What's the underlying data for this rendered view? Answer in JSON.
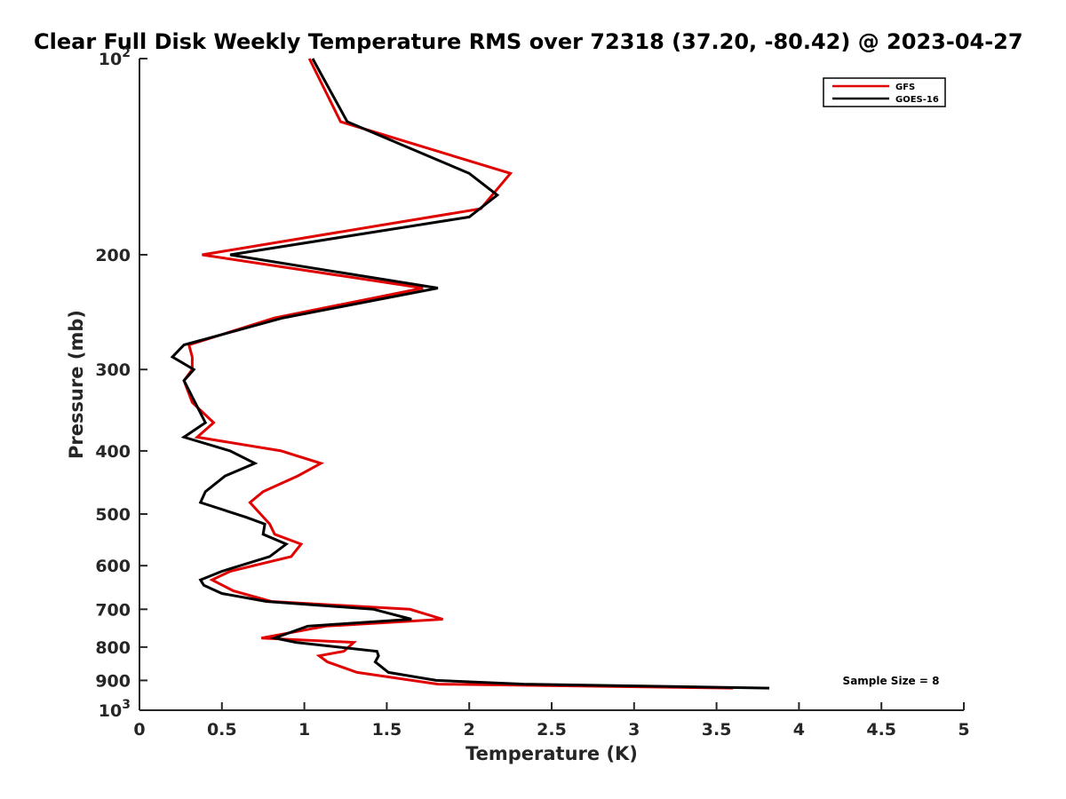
{
  "chart_data": {
    "type": "line",
    "title": "Clear Full Disk Weekly Temperature RMS over 72318 (37.20, -80.42) @ 2023-04-27",
    "xlabel": "Temperature (K)",
    "ylabel": "Pressure (mb)",
    "xlim": [
      0,
      5
    ],
    "ylim": [
      100,
      1000
    ],
    "yscale": "log",
    "yreversed": true,
    "x_ticks": [
      "0",
      "0.5",
      "1",
      "1.5",
      "2",
      "2.5",
      "3",
      "3.5",
      "4",
      "4.5",
      "5"
    ],
    "y_ticks": [
      {
        "value": 100,
        "base": "10",
        "exp": "2"
      },
      {
        "value": 200,
        "label": "200"
      },
      {
        "value": 300,
        "label": "300"
      },
      {
        "value": 400,
        "label": "400"
      },
      {
        "value": 500,
        "label": "500"
      },
      {
        "value": 600,
        "label": "600"
      },
      {
        "value": 700,
        "label": "700"
      },
      {
        "value": 800,
        "label": "800"
      },
      {
        "value": 900,
        "label": "900"
      },
      {
        "value": 1000,
        "base": "10",
        "exp": "3"
      }
    ],
    "grid": false,
    "legend_position": "top-right",
    "series": [
      {
        "name": "GFS",
        "color": "#e00000",
        "points": [
          [
            1.03,
            100
          ],
          [
            1.22,
            125
          ],
          [
            2.25,
            150
          ],
          [
            2.07,
            170
          ],
          [
            0.38,
            200
          ],
          [
            1.72,
            225
          ],
          [
            0.82,
            250
          ],
          [
            0.3,
            275
          ],
          [
            0.32,
            287
          ],
          [
            0.32,
            300
          ],
          [
            0.27,
            312
          ],
          [
            0.32,
            337
          ],
          [
            0.45,
            362
          ],
          [
            0.35,
            381
          ],
          [
            0.86,
            400
          ],
          [
            1.1,
            418
          ],
          [
            0.96,
            437
          ],
          [
            0.75,
            462
          ],
          [
            0.67,
            480
          ],
          [
            0.79,
            518
          ],
          [
            0.82,
            537
          ],
          [
            0.98,
            556
          ],
          [
            0.92,
            581
          ],
          [
            0.55,
            612
          ],
          [
            0.44,
            631
          ],
          [
            0.57,
            656
          ],
          [
            0.8,
            681
          ],
          [
            1.64,
            700
          ],
          [
            1.84,
            725
          ],
          [
            1.13,
            743
          ],
          [
            0.74,
            775
          ],
          [
            1.3,
            787
          ],
          [
            1.24,
            812
          ],
          [
            1.09,
            825
          ],
          [
            1.14,
            843
          ],
          [
            1.32,
            875
          ],
          [
            1.81,
            912
          ],
          [
            3.6,
            925
          ]
        ]
      },
      {
        "name": "GOES-16",
        "color": "#000000",
        "points": [
          [
            1.05,
            100
          ],
          [
            1.26,
            125
          ],
          [
            2.0,
            150
          ],
          [
            2.17,
            162
          ],
          [
            2.0,
            175
          ],
          [
            0.55,
            200
          ],
          [
            1.81,
            225
          ],
          [
            0.87,
            250
          ],
          [
            0.27,
            275
          ],
          [
            0.2,
            287
          ],
          [
            0.33,
            300
          ],
          [
            0.27,
            312
          ],
          [
            0.4,
            362
          ],
          [
            0.27,
            381
          ],
          [
            0.55,
            400
          ],
          [
            0.7,
            418
          ],
          [
            0.52,
            437
          ],
          [
            0.4,
            462
          ],
          [
            0.37,
            480
          ],
          [
            0.65,
            506
          ],
          [
            0.76,
            518
          ],
          [
            0.75,
            537
          ],
          [
            0.89,
            556
          ],
          [
            0.79,
            581
          ],
          [
            0.5,
            612
          ],
          [
            0.37,
            631
          ],
          [
            0.39,
            643
          ],
          [
            0.5,
            662
          ],
          [
            0.77,
            681
          ],
          [
            1.42,
            700
          ],
          [
            1.65,
            725
          ],
          [
            1.02,
            743
          ],
          [
            0.82,
            775
          ],
          [
            0.95,
            787
          ],
          [
            1.44,
            812
          ],
          [
            1.45,
            825
          ],
          [
            1.43,
            843
          ],
          [
            1.51,
            875
          ],
          [
            1.8,
            900
          ],
          [
            2.33,
            912
          ],
          [
            3.82,
            925
          ]
        ]
      }
    ],
    "annotation": "Sample Size = 8"
  }
}
